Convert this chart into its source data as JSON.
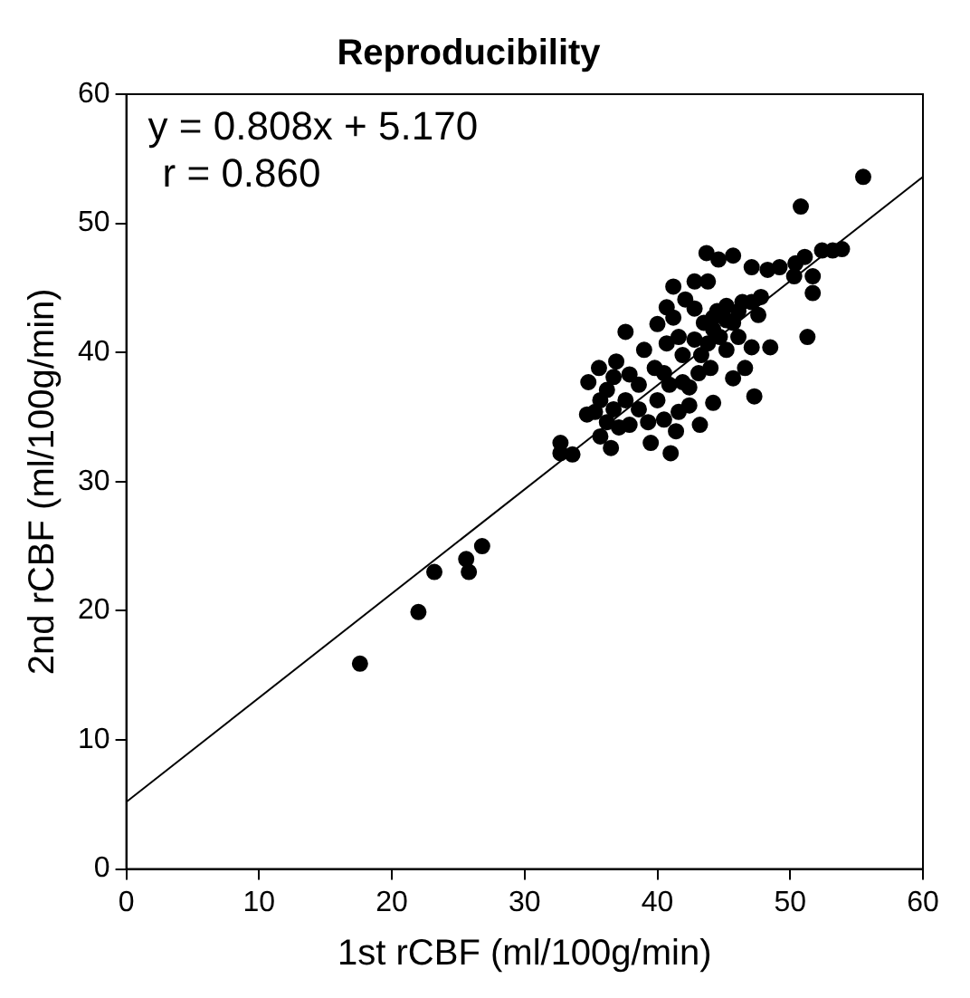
{
  "chart_data": {
    "type": "scatter",
    "title": "Reproducibility",
    "xlabel": "1st rCBF (ml/100g/min)",
    "ylabel": "2nd rCBF (ml/100g/min)",
    "xlim": [
      0,
      60
    ],
    "ylim": [
      0,
      60
    ],
    "xticks": [
      0,
      10,
      20,
      30,
      40,
      50,
      60
    ],
    "yticks": [
      0,
      10,
      20,
      30,
      40,
      50,
      60
    ],
    "grid": false,
    "legend": false,
    "annotations": [
      "y = 0.808x + 5.170",
      "r = 0.860"
    ],
    "series": [
      {
        "color": "#000000",
        "marker": "circle",
        "x": [
          17.6,
          22.0,
          23.2,
          25.6,
          25.8,
          26.8,
          32.7,
          32.7,
          33.6,
          55.5,
          50.8,
          51.3,
          51.7,
          51.7,
          53.9,
          53.2,
          52.4,
          51.1,
          50.4,
          50.3,
          49.2,
          48.3,
          47.1,
          48.5,
          47.3,
          43.7,
          45.7,
          44.6,
          42.8,
          43.8,
          41.2,
          40.7,
          37.6,
          40.0,
          43.2,
          41.0,
          39.5,
          36.5,
          35.7,
          34.7,
          34.8,
          35.6,
          36.9,
          39.0,
          44.2,
          45.7,
          46.6,
          42.4,
          41.6,
          42.8,
          44.2,
          45.2,
          46.1,
          47.1,
          47.6,
          44.5,
          43.5,
          41.9,
          40.5,
          38.6,
          37.6,
          38.6,
          36.7,
          35.7,
          40.0,
          39.3,
          37.9,
          40.5,
          41.4,
          42.4,
          45.2,
          46.1,
          44.7,
          43.8,
          47.1,
          41.2,
          41.6,
          42.1,
          42.8,
          45.2,
          46.4,
          47.8,
          36.7,
          37.9,
          36.2,
          37.1,
          36.2,
          35.3,
          39.8,
          40.9,
          41.9,
          43.1,
          44.0,
          45.7,
          44.2,
          43.3,
          40.7
        ],
        "values": [
          15.9,
          19.9,
          23.0,
          24.0,
          23.0,
          25.0,
          33.0,
          32.2,
          32.1,
          53.6,
          51.3,
          41.2,
          44.6,
          45.9,
          48.0,
          47.9,
          47.9,
          47.4,
          46.9,
          45.9,
          46.6,
          46.4,
          46.6,
          40.4,
          36.6,
          47.7,
          47.5,
          47.2,
          45.5,
          45.5,
          45.1,
          43.5,
          41.6,
          42.2,
          34.4,
          32.2,
          33.0,
          32.6,
          33.5,
          35.2,
          37.7,
          38.8,
          39.3,
          40.2,
          36.1,
          38.0,
          38.8,
          37.3,
          35.4,
          41.0,
          41.8,
          42.5,
          43.2,
          43.9,
          42.9,
          43.2,
          42.3,
          39.8,
          38.4,
          37.5,
          36.3,
          35.6,
          35.6,
          36.3,
          36.3,
          34.6,
          34.4,
          34.8,
          33.9,
          35.9,
          40.2,
          41.2,
          41.2,
          40.7,
          40.4,
          42.7,
          41.2,
          44.1,
          43.4,
          43.6,
          43.9,
          44.3,
          38.1,
          38.3,
          37.1,
          34.2,
          34.6,
          35.4,
          38.8,
          37.5,
          37.7,
          38.4,
          38.8,
          42.3,
          42.7,
          39.8,
          40.7
        ]
      },
      {
        "type": "line",
        "color": "#000000",
        "marker": "none",
        "x": [
          0,
          60
        ],
        "values": [
          5.2,
          53.6
        ]
      }
    ]
  }
}
